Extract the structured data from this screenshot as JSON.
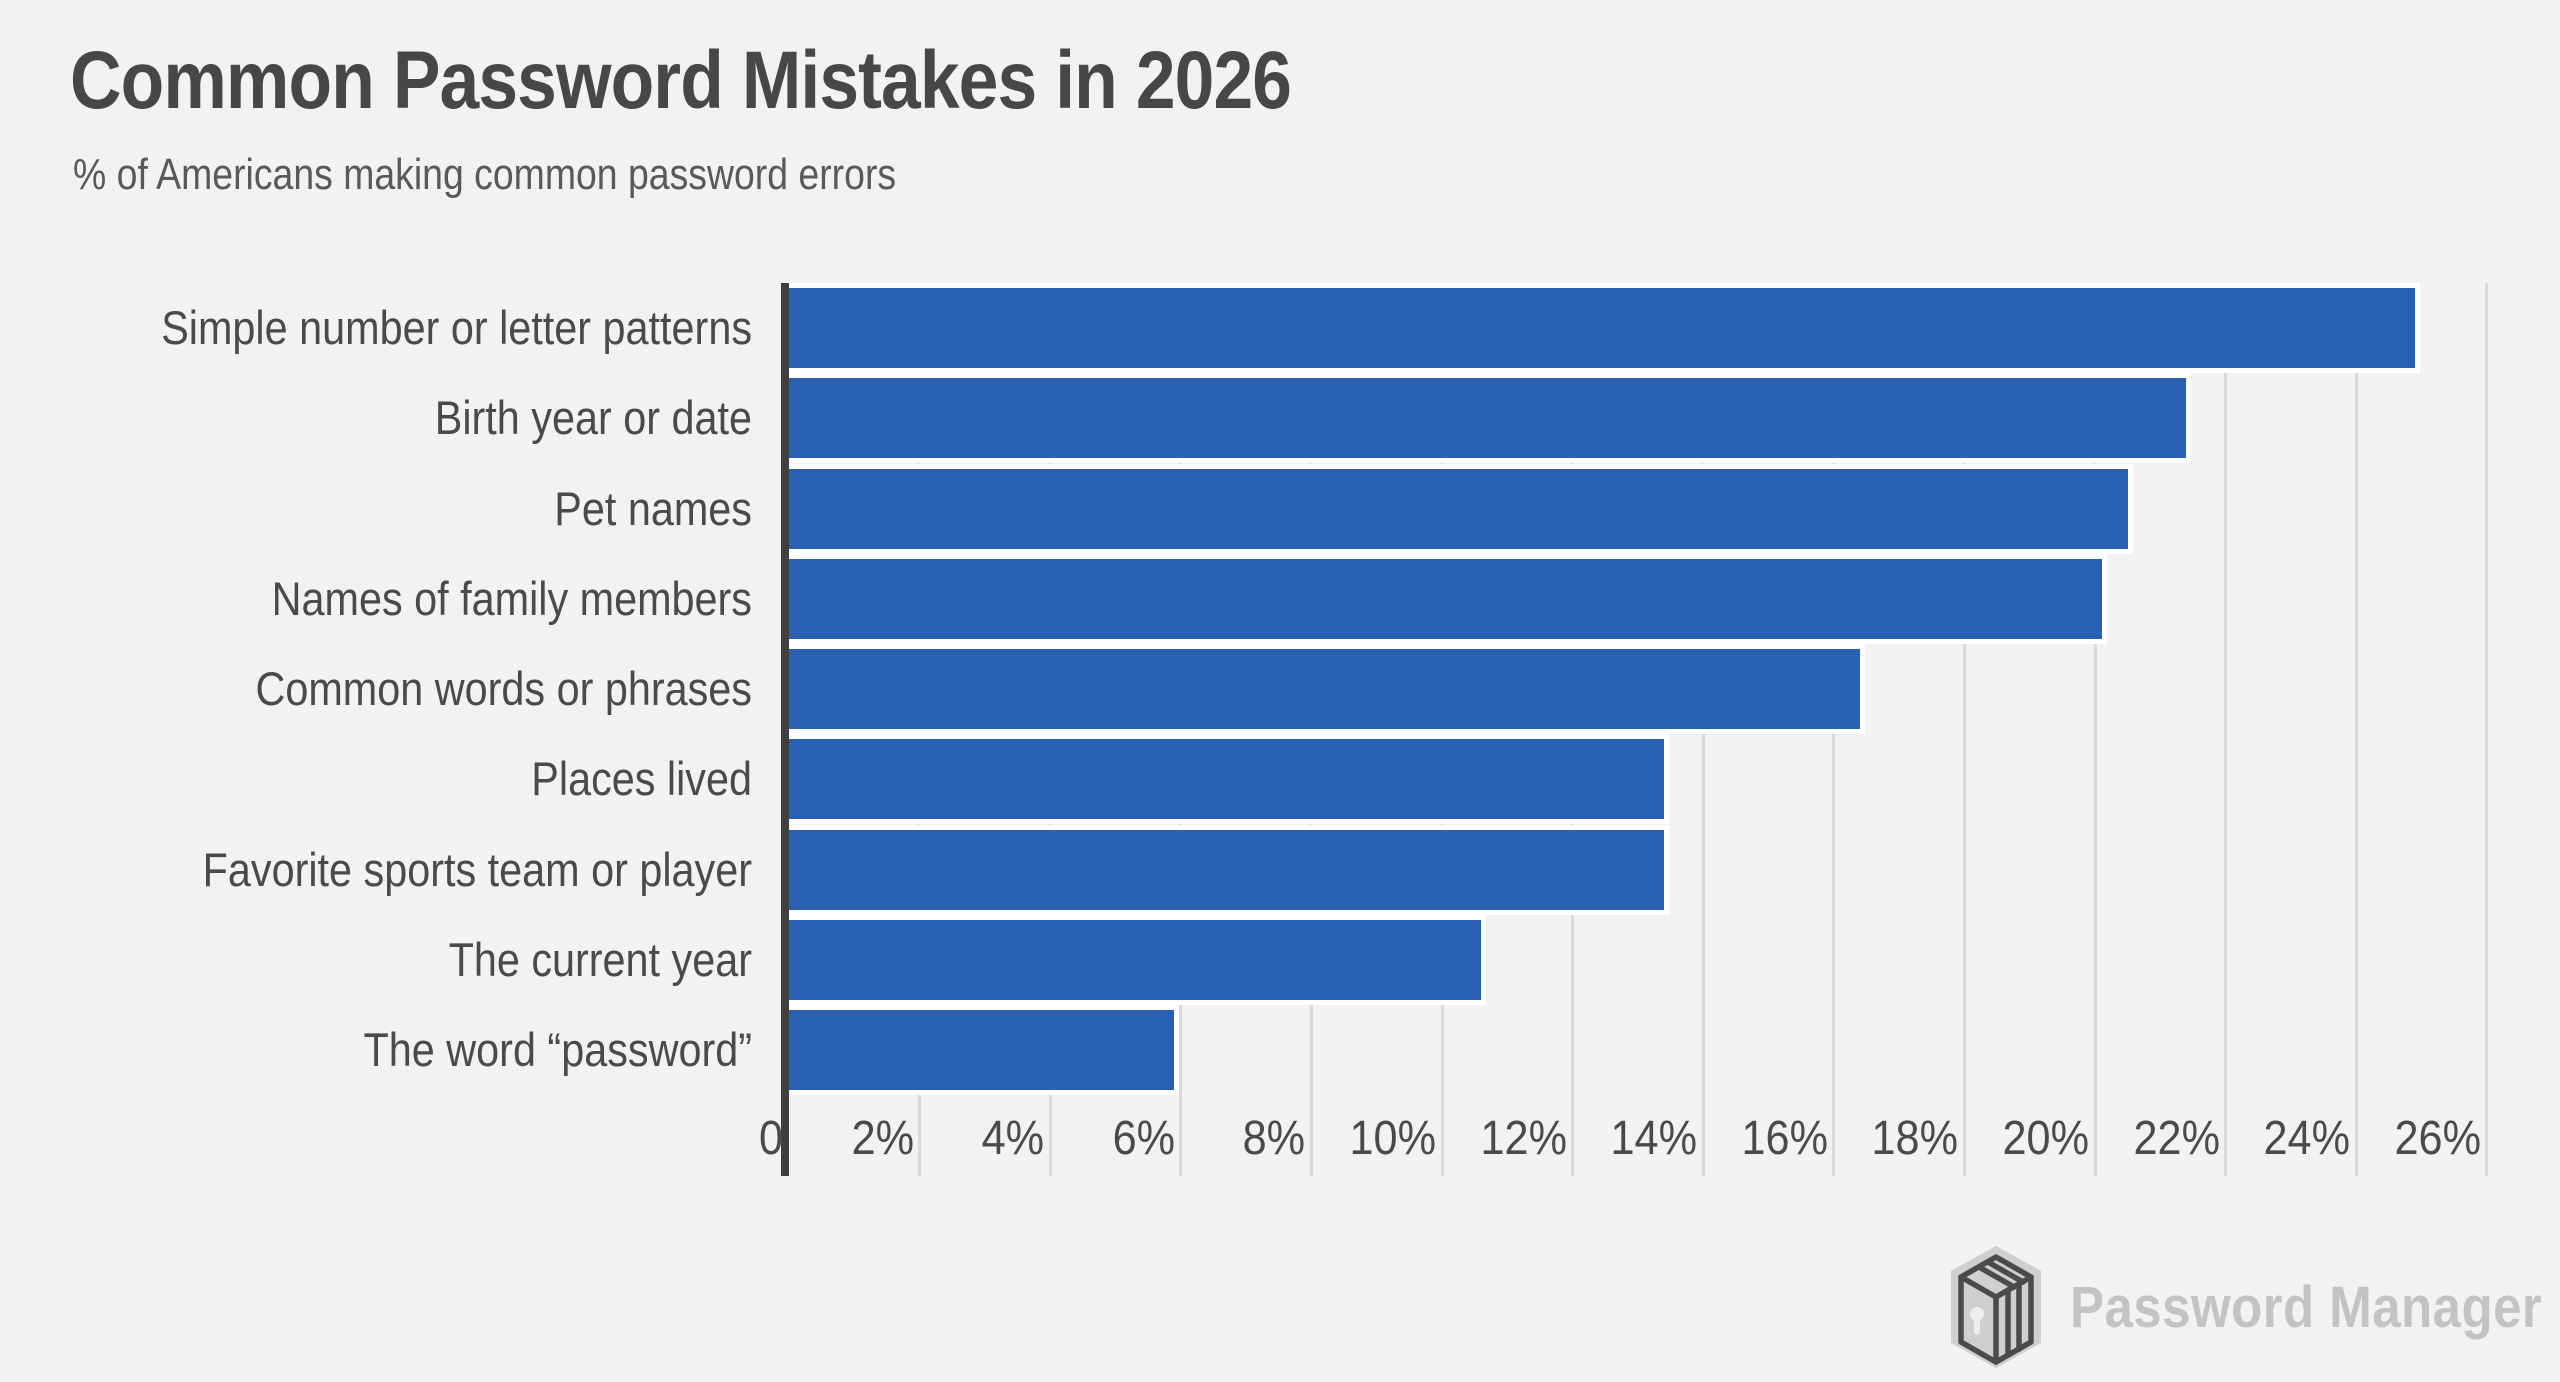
{
  "title": "Common Password Mistakes in 2026",
  "subtitle": "% of Americans making common password errors",
  "branding": {
    "logo_text": "Password Manager",
    "logo_icon": "password-manager-cube-icon"
  },
  "colors": {
    "background": "#f2f2f2",
    "bar": "#2a60b2",
    "bar_separator": "#ffffff",
    "axis": "#3f3f3f",
    "gridline": "#d9d9d9",
    "title_text": "#474747",
    "subtitle_text": "#595959",
    "label_text": "#4a4a4a",
    "logo_text": "#c3c3c3"
  },
  "chart_data": {
    "type": "bar",
    "orientation": "horizontal",
    "title": "Common Password Mistakes in 2026",
    "subtitle": "% of Americans making common password errors",
    "categories": [
      "Simple number or letter patterns",
      "Birth year or date",
      "Pet names",
      "Names of family members",
      "Common words or phrases",
      "Places lived",
      "Favorite sports team or player",
      "The current year",
      "The word “password”"
    ],
    "values": [
      24.9,
      21.4,
      20.5,
      20.1,
      16.4,
      13.4,
      13.4,
      10.6,
      5.9
    ],
    "unit": "%",
    "xlabel": "",
    "ylabel": "",
    "xlim": [
      0,
      27.1
    ],
    "x_tick_values": [
      0,
      2,
      4,
      6,
      8,
      10,
      12,
      14,
      16,
      18,
      20,
      22,
      24,
      26
    ],
    "x_ticks": [
      "0",
      "2%",
      "4%",
      "6%",
      "8%",
      "10%",
      "12%",
      "14%",
      "16%",
      "18%",
      "20%",
      "22%",
      "24%",
      "26%"
    ],
    "grid": "vertical-only",
    "legend": "none",
    "data_labels": "none"
  }
}
